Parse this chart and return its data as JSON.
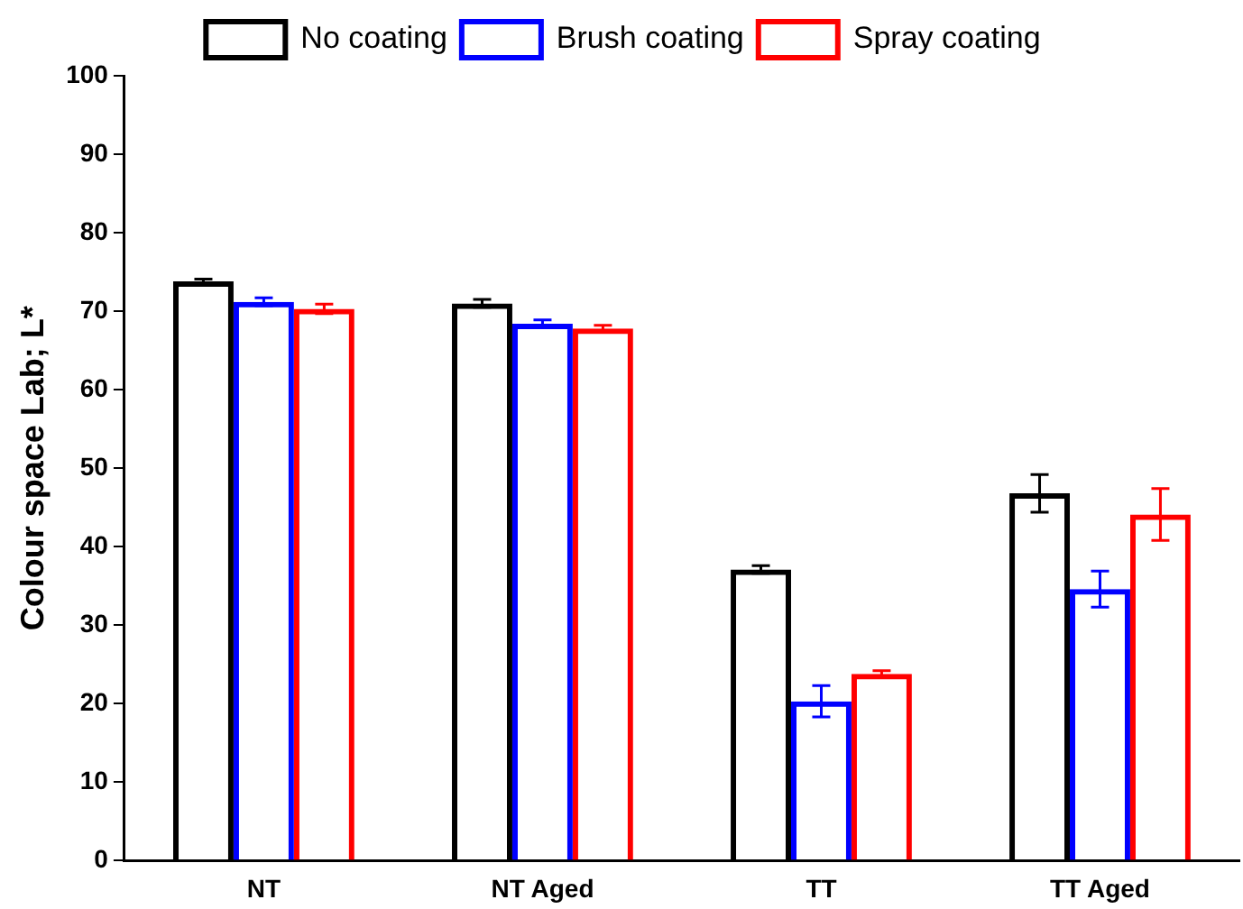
{
  "chart_data": {
    "type": "bar",
    "ylabel": "Colour space Lab; L*",
    "categories": [
      "NT",
      "NT Aged",
      "TT",
      "TT Aged"
    ],
    "series": [
      {
        "name": "No coating",
        "color": "#000000",
        "values": [
          73.8,
          71.0,
          37.1,
          46.8
        ],
        "errors": [
          0.3,
          0.5,
          0.5,
          2.4
        ]
      },
      {
        "name": "Brush coating",
        "color": "#0000ff",
        "values": [
          71.2,
          68.4,
          20.3,
          34.6
        ],
        "errors": [
          0.5,
          0.5,
          2.0,
          2.3
        ]
      },
      {
        "name": "Spray coating",
        "color": "#ff0000",
        "values": [
          70.3,
          67.8,
          23.8,
          44.1
        ],
        "errors": [
          0.6,
          0.4,
          0.4,
          3.3
        ]
      }
    ],
    "ylim": [
      0,
      100
    ],
    "yticks": [
      0,
      10,
      20,
      30,
      40,
      50,
      60,
      70,
      80,
      90,
      100
    ],
    "grid": false,
    "legend": "top"
  }
}
